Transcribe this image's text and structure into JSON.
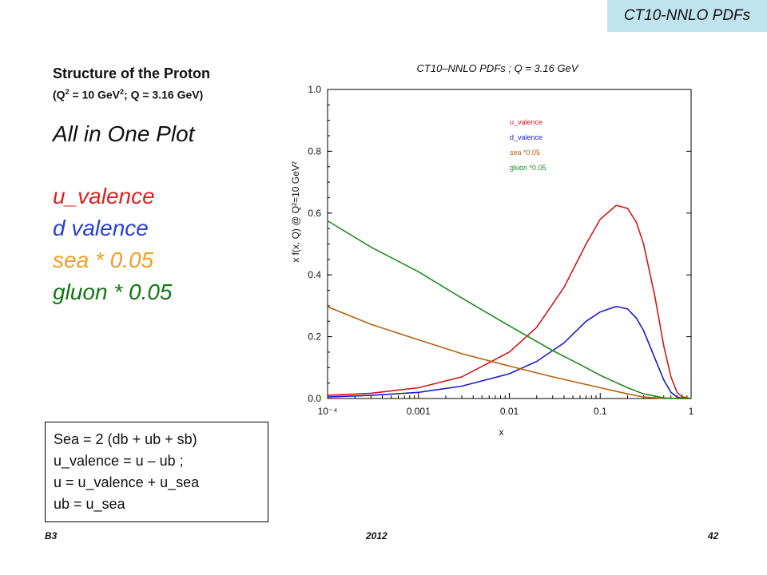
{
  "badge": "CT10-NNLO PDFs",
  "left": {
    "title": "Structure of the Proton",
    "subtitle_pre": "(Q",
    "subtitle_sup1": "2",
    "subtitle_mid": " = 10 GeV",
    "subtitle_sup2": "2",
    "subtitle_post": "; Q = 3.16 GeV)",
    "heading": "All in One Plot",
    "items": [
      {
        "text": "u_valence",
        "color": "#e02020"
      },
      {
        "text": "d valence",
        "color": "#2a3fd6"
      },
      {
        "text": "sea * 0.05",
        "color": "#f0a020"
      },
      {
        "text": "gluon * 0.05",
        "color": "#127812"
      }
    ]
  },
  "formulas": [
    "Sea = 2 (db + ub + sb)",
    "u_valence = u – ub ;",
    "u = u_valence + u_sea",
    "ub = u_sea"
  ],
  "footer": {
    "left": "B3",
    "center": "2012",
    "right": "42"
  },
  "chart_data": {
    "type": "line",
    "title": "CT10–NNLO PDFs ; Q = 3.16 GeV",
    "xlabel": "x",
    "ylabel": "x f(x, Q) @ Q²=10 GeV²",
    "x_scale": "log",
    "xlim": [
      0.0001,
      1
    ],
    "ylim": [
      0,
      1.0
    ],
    "xticks": [
      {
        "value": 0.0001,
        "label": "10⁻⁴"
      },
      {
        "value": 0.001,
        "label": "0.001"
      },
      {
        "value": 0.01,
        "label": "0.01"
      },
      {
        "value": 0.1,
        "label": "0.1"
      },
      {
        "value": 1,
        "label": "1"
      }
    ],
    "yticks": [
      0.0,
      0.2,
      0.4,
      0.6,
      0.8,
      1.0
    ],
    "ytick_labels": [
      "0.0",
      "0.2",
      "0.4",
      "0.6",
      "0.8",
      "1.0"
    ],
    "legend_position": "top-center",
    "series": [
      {
        "name": "u_valence",
        "color": "#d01818",
        "x": [
          0.0001,
          0.0003,
          0.001,
          0.003,
          0.01,
          0.02,
          0.04,
          0.07,
          0.1,
          0.15,
          0.2,
          0.25,
          0.3,
          0.4,
          0.5,
          0.6,
          0.7,
          0.8,
          1.0
        ],
        "y": [
          0.01,
          0.017,
          0.035,
          0.07,
          0.15,
          0.23,
          0.36,
          0.5,
          0.58,
          0.625,
          0.615,
          0.57,
          0.5,
          0.33,
          0.17,
          0.07,
          0.02,
          0.005,
          0.0
        ]
      },
      {
        "name": "d_valence",
        "color": "#1a1acf",
        "x": [
          0.0001,
          0.0003,
          0.001,
          0.003,
          0.01,
          0.02,
          0.04,
          0.07,
          0.1,
          0.15,
          0.2,
          0.25,
          0.3,
          0.4,
          0.5,
          0.6,
          0.7,
          0.8,
          1.0
        ],
        "y": [
          0.005,
          0.01,
          0.02,
          0.04,
          0.08,
          0.12,
          0.18,
          0.25,
          0.28,
          0.298,
          0.29,
          0.26,
          0.22,
          0.13,
          0.06,
          0.02,
          0.005,
          0.001,
          0.0
        ]
      },
      {
        "name": "sea *0.05",
        "color": "#b8600c",
        "x": [
          0.0001,
          0.0003,
          0.001,
          0.003,
          0.01,
          0.03,
          0.1,
          0.2,
          0.3,
          0.5,
          1.0
        ],
        "y": [
          0.297,
          0.24,
          0.19,
          0.145,
          0.105,
          0.07,
          0.035,
          0.015,
          0.005,
          0.0,
          0.0
        ]
      },
      {
        "name": "gluon *0.05",
        "color": "#1f8a1f",
        "x": [
          0.0001,
          0.0003,
          0.001,
          0.003,
          0.01,
          0.03,
          0.06,
          0.1,
          0.2,
          0.3,
          0.5,
          0.7,
          1.0
        ],
        "y": [
          0.575,
          0.49,
          0.41,
          0.325,
          0.235,
          0.155,
          0.11,
          0.075,
          0.035,
          0.015,
          0.002,
          0.0,
          0.0
        ]
      }
    ]
  }
}
